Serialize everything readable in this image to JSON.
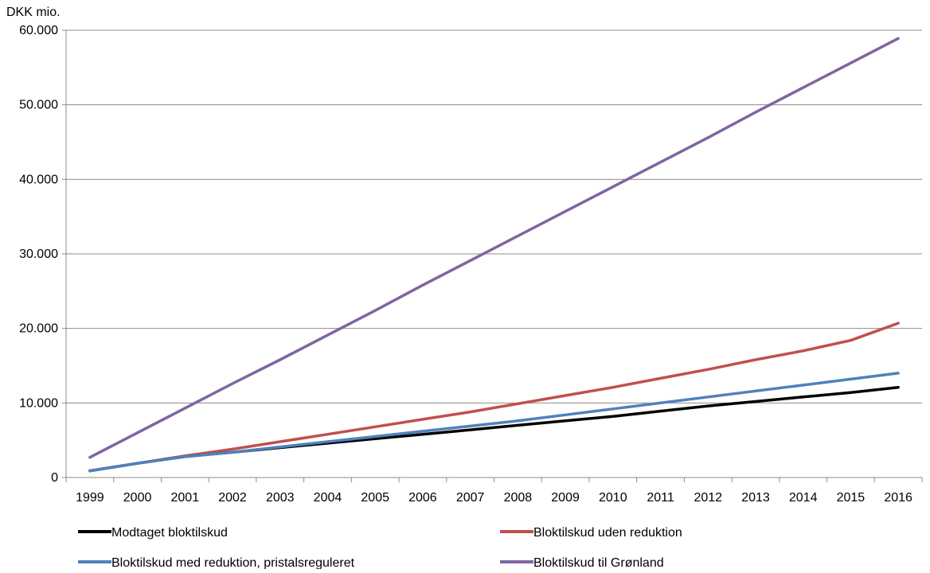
{
  "chart_data": {
    "type": "line",
    "ylabel": "DKK mio.",
    "ylim": [
      0,
      60000
    ],
    "y_ticks": [
      0,
      10000,
      20000,
      30000,
      40000,
      50000,
      60000
    ],
    "y_tick_labels": [
      "0",
      "10.000",
      "20.000",
      "30.000",
      "40.000",
      "50.000",
      "60.000"
    ],
    "categories": [
      "1999",
      "2000",
      "2001",
      "2002",
      "2003",
      "2004",
      "2005",
      "2006",
      "2007",
      "2008",
      "2009",
      "2010",
      "2011",
      "2012",
      "2013",
      "2014",
      "2015",
      "2016"
    ],
    "grid": "horizontal",
    "legend_position": "bottom",
    "series": [
      {
        "name": "Modtaget bloktilskud",
        "color": "#000000",
        "values": [
          900,
          1900,
          2800,
          3400,
          4000,
          4600,
          5200,
          5800,
          6400,
          7000,
          7600,
          8200,
          8900,
          9600,
          10200,
          10800,
          11400,
          12100
        ]
      },
      {
        "name": "Bloktilskud uden reduktion",
        "color": "#c0504d",
        "values": [
          900,
          1900,
          2900,
          3800,
          4800,
          5800,
          6800,
          7800,
          8800,
          9900,
          11000,
          12100,
          13300,
          14500,
          15800,
          17000,
          18400,
          20700
        ]
      },
      {
        "name": "Bloktilskud med reduktion, pristalsreguleret",
        "color": "#4f81bd",
        "values": [
          900,
          1900,
          2800,
          3400,
          4100,
          4800,
          5500,
          6200,
          6900,
          7600,
          8400,
          9200,
          10000,
          10800,
          11600,
          12400,
          13200,
          14000
        ]
      },
      {
        "name": "Bloktilskud til Grønland",
        "color": "#8064a2",
        "values": [
          2700,
          6000,
          9300,
          12600,
          15800,
          19100,
          22400,
          25800,
          29100,
          32400,
          35700,
          39000,
          42300,
          45600,
          49000,
          52300,
          55600,
          58900
        ]
      }
    ]
  }
}
